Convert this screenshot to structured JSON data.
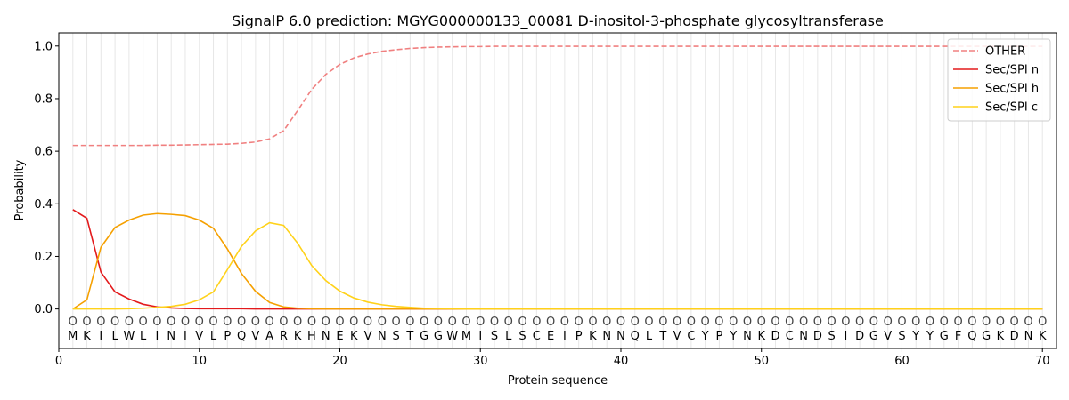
{
  "chart_data": {
    "type": "line",
    "title": "SignalP 6.0 prediction: MGYG000000133_00081 D-inositol-3-phosphate glycosyltransferase",
    "xlabel": "Protein sequence",
    "ylabel": "Probability",
    "xlim": [
      0,
      71
    ],
    "ylim": [
      -0.15,
      1.05
    ],
    "x_ticks": [
      0,
      10,
      20,
      30,
      40,
      50,
      60,
      70
    ],
    "y_ticks": [
      0.0,
      0.2,
      0.4,
      0.6,
      0.8,
      1.0
    ],
    "x_tick_labels": [
      "0",
      "10",
      "20",
      "30",
      "40",
      "50",
      "60",
      "70"
    ],
    "y_tick_labels": [
      "0.0",
      "0.2",
      "0.4",
      "0.6",
      "0.8",
      "1.0"
    ],
    "legend_position": "top-right",
    "grid": "vertical lines at each residue",
    "sequence": [
      "M",
      "K",
      "I",
      "L",
      "W",
      "L",
      "I",
      "N",
      "I",
      "V",
      "L",
      "P",
      "Q",
      "V",
      "A",
      "R",
      "K",
      "H",
      "N",
      "E",
      "K",
      "V",
      "N",
      "S",
      "T",
      "G",
      "G",
      "W",
      "M",
      "I",
      "S",
      "L",
      "S",
      "C",
      "E",
      "I",
      "P",
      "K",
      "N",
      "N",
      "Q",
      "L",
      "T",
      "V",
      "C",
      "Y",
      "P",
      "Y",
      "N",
      "K",
      "D",
      "C",
      "N",
      "D",
      "S",
      "I",
      "D",
      "G",
      "V",
      "S",
      "Y",
      "Y",
      "G",
      "F",
      "Q",
      "G",
      "K",
      "D",
      "N",
      "K"
    ],
    "predicted_labels": [
      "O",
      "O",
      "O",
      "O",
      "O",
      "O",
      "O",
      "O",
      "O",
      "O",
      "O",
      "O",
      "O",
      "O",
      "O",
      "O",
      "O",
      "O",
      "O",
      "O",
      "O",
      "O",
      "O",
      "O",
      "O",
      "O",
      "O",
      "O",
      "O",
      "O",
      "O",
      "O",
      "O",
      "O",
      "O",
      "O",
      "O",
      "O",
      "O",
      "O",
      "O",
      "O",
      "O",
      "O",
      "O",
      "O",
      "O",
      "O",
      "O",
      "O",
      "O",
      "O",
      "O",
      "O",
      "O",
      "O",
      "O",
      "O",
      "O",
      "O",
      "O",
      "O",
      "O",
      "O",
      "O",
      "O",
      "O",
      "O",
      "O",
      "O"
    ],
    "series": [
      {
        "name": "OTHER",
        "color": "#f08080",
        "style": "dashed",
        "values": [
          0.622,
          0.622,
          0.622,
          0.622,
          0.622,
          0.622,
          0.623,
          0.623,
          0.624,
          0.625,
          0.626,
          0.627,
          0.63,
          0.635,
          0.647,
          0.678,
          0.755,
          0.835,
          0.892,
          0.93,
          0.955,
          0.97,
          0.98,
          0.986,
          0.991,
          0.994,
          0.996,
          0.997,
          0.998,
          0.998,
          0.999,
          0.999,
          0.999,
          0.999,
          0.999,
          0.999,
          0.999,
          0.999,
          0.999,
          0.999,
          0.999,
          0.999,
          0.999,
          0.999,
          0.999,
          0.999,
          0.999,
          0.999,
          0.999,
          0.999,
          0.999,
          0.999,
          0.999,
          0.999,
          0.999,
          0.999,
          0.999,
          0.999,
          0.999,
          0.999,
          0.999,
          0.999,
          0.999,
          0.999,
          0.999,
          0.999,
          0.999,
          0.999,
          0.999,
          0.999
        ]
      },
      {
        "name": "Sec/SPI n",
        "color": "#e31a1c",
        "style": "solid",
        "values": [
          0.378,
          0.345,
          0.14,
          0.065,
          0.038,
          0.018,
          0.008,
          0.004,
          0.002,
          0.001,
          0.001,
          0.001,
          0.001,
          0,
          0,
          0,
          0,
          0,
          0,
          0,
          0,
          0,
          0,
          0,
          0,
          0,
          0,
          0,
          0,
          0,
          0,
          0,
          0,
          0,
          0,
          0,
          0,
          0,
          0,
          0,
          0,
          0,
          0,
          0,
          0,
          0,
          0,
          0,
          0,
          0,
          0,
          0,
          0,
          0,
          0,
          0,
          0,
          0,
          0,
          0,
          0,
          0,
          0,
          0,
          0,
          0,
          0,
          0,
          0,
          0
        ]
      },
      {
        "name": "Sec/SPI h",
        "color": "#f5a000",
        "style": "solid",
        "values": [
          0.0,
          0.035,
          0.235,
          0.31,
          0.338,
          0.357,
          0.363,
          0.36,
          0.355,
          0.338,
          0.307,
          0.228,
          0.135,
          0.067,
          0.025,
          0.008,
          0.003,
          0.001,
          0,
          0,
          0,
          0,
          0,
          0,
          0,
          0,
          0,
          0,
          0,
          0,
          0,
          0,
          0,
          0,
          0,
          0,
          0,
          0,
          0,
          0,
          0,
          0,
          0,
          0,
          0,
          0,
          0,
          0,
          0,
          0,
          0,
          0,
          0,
          0,
          0,
          0,
          0,
          0,
          0,
          0,
          0,
          0,
          0,
          0,
          0,
          0,
          0,
          0,
          0,
          0
        ]
      },
      {
        "name": "Sec/SPI c",
        "color": "#ffd21a",
        "style": "solid",
        "values": [
          0.0,
          0.0,
          0.0,
          0.0,
          0.001,
          0.003,
          0.006,
          0.01,
          0.018,
          0.035,
          0.065,
          0.15,
          0.238,
          0.297,
          0.328,
          0.318,
          0.25,
          0.165,
          0.108,
          0.068,
          0.042,
          0.026,
          0.016,
          0.01,
          0.006,
          0.003,
          0.002,
          0.001,
          0,
          0,
          0,
          0,
          0,
          0,
          0,
          0,
          0,
          0,
          0,
          0,
          0,
          0,
          0,
          0,
          0,
          0,
          0,
          0,
          0,
          0,
          0,
          0,
          0,
          0,
          0,
          0,
          0,
          0,
          0,
          0,
          0,
          0,
          0,
          0,
          0,
          0,
          0,
          0,
          0,
          0
        ]
      }
    ]
  }
}
